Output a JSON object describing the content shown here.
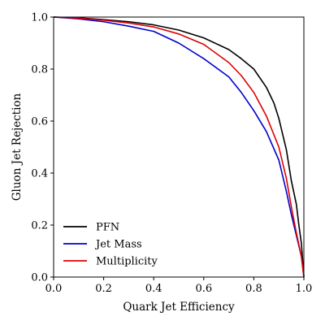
{
  "chart_data": {
    "type": "line",
    "title": "",
    "xlabel": "Quark Jet Efficiency",
    "ylabel": "Gluon Jet Rejection",
    "xlim": [
      0.0,
      1.0
    ],
    "ylim": [
      0.0,
      1.0
    ],
    "xticks": [
      "0.0",
      "0.2",
      "0.4",
      "0.6",
      "0.8",
      "1.0"
    ],
    "yticks": [
      "0.0",
      "0.2",
      "0.4",
      "0.6",
      "0.8",
      "1.0"
    ],
    "grid": false,
    "legend_position": "lower-left",
    "series": [
      {
        "name": "PFN",
        "color": "#000000",
        "x": [
          0.0,
          0.1,
          0.2,
          0.3,
          0.4,
          0.5,
          0.6,
          0.7,
          0.75,
          0.8,
          0.85,
          0.88,
          0.9,
          0.93,
          0.95,
          0.97,
          0.98,
          0.99,
          1.0
        ],
        "y": [
          1.0,
          0.997,
          0.99,
          0.982,
          0.97,
          0.95,
          0.92,
          0.875,
          0.84,
          0.8,
          0.73,
          0.67,
          0.61,
          0.49,
          0.37,
          0.28,
          0.2,
          0.13,
          0.0
        ]
      },
      {
        "name": "Jet Mass",
        "color": "#0000cc",
        "x": [
          0.0,
          0.1,
          0.2,
          0.3,
          0.4,
          0.5,
          0.6,
          0.7,
          0.75,
          0.8,
          0.85,
          0.9,
          0.93,
          0.95,
          0.97,
          0.99,
          1.0
        ],
        "y": [
          1.0,
          0.993,
          0.982,
          0.965,
          0.945,
          0.9,
          0.84,
          0.77,
          0.71,
          0.64,
          0.56,
          0.45,
          0.33,
          0.24,
          0.16,
          0.08,
          0.0
        ]
      },
      {
        "name": "Multiplicity",
        "color": "#dd0000",
        "x": [
          0.0,
          0.1,
          0.2,
          0.3,
          0.4,
          0.5,
          0.6,
          0.7,
          0.75,
          0.8,
          0.85,
          0.9,
          0.93,
          0.95,
          0.97,
          0.99,
          1.0
        ],
        "y": [
          1.0,
          0.996,
          0.988,
          0.977,
          0.962,
          0.935,
          0.895,
          0.825,
          0.775,
          0.71,
          0.62,
          0.5,
          0.38,
          0.27,
          0.17,
          0.08,
          0.0
        ]
      }
    ]
  }
}
